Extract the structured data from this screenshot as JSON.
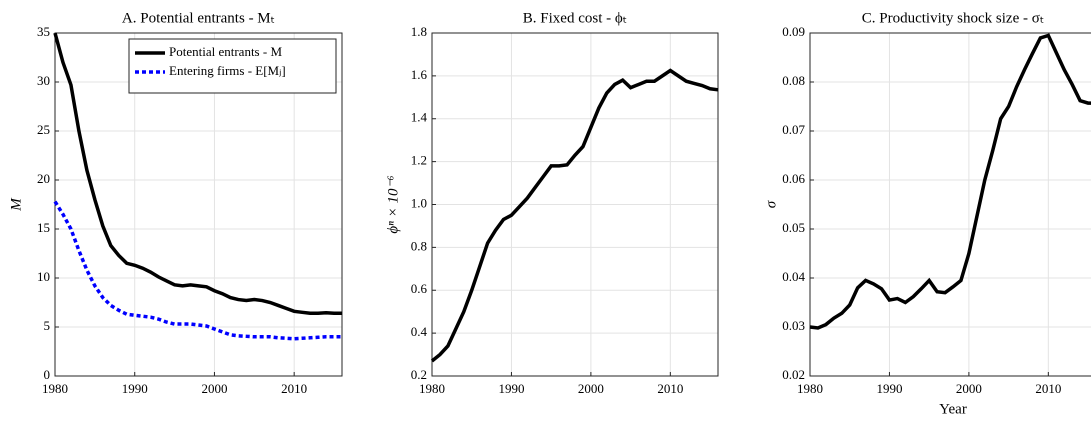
{
  "chart_data": [
    {
      "type": "line",
      "title": "A. Potential entrants - Mₜ",
      "ylabel": "M",
      "x": [
        1980,
        1981,
        1982,
        1983,
        1984,
        1985,
        1986,
        1987,
        1988,
        1989,
        1990,
        1991,
        1992,
        1993,
        1994,
        1995,
        1996,
        1997,
        1998,
        1999,
        2000,
        2001,
        2002,
        2003,
        2004,
        2005,
        2006,
        2007,
        2008,
        2009,
        2010,
        2011,
        2012,
        2013,
        2014,
        2015,
        2016
      ],
      "series": [
        {
          "name": "Potential entrants - M",
          "color": "#000000",
          "style": "solid",
          "values": [
            35,
            32,
            29.7,
            25,
            21,
            18,
            15.3,
            13.3,
            12.3,
            11.5,
            11.3,
            11,
            10.6,
            10.1,
            9.7,
            9.3,
            9.2,
            9.3,
            9.2,
            9.1,
            8.7,
            8.4,
            8,
            7.8,
            7.7,
            7.8,
            7.7,
            7.5,
            7.2,
            6.9,
            6.6,
            6.5,
            6.4,
            6.4,
            6.45,
            6.4,
            6.4
          ]
        },
        {
          "name": "Entering firms - E[Mⱼ]",
          "color": "#0000ff",
          "style": "dotted",
          "values": [
            17.8,
            16.5,
            15,
            12.8,
            10.8,
            9.2,
            8,
            7.2,
            6.7,
            6.3,
            6.2,
            6.1,
            6,
            5.8,
            5.5,
            5.3,
            5.3,
            5.3,
            5.2,
            5.1,
            4.8,
            4.5,
            4.2,
            4.1,
            4.05,
            4,
            4,
            4,
            3.9,
            3.85,
            3.8,
            3.85,
            3.9,
            3.95,
            4,
            4,
            4
          ]
        }
      ],
      "xlim": [
        1980,
        2016
      ],
      "xticks": [
        1980,
        1990,
        2000,
        2010
      ],
      "ylim": [
        0,
        35
      ],
      "yticks": [
        0,
        5,
        10,
        15,
        20,
        25,
        30,
        35
      ],
      "grid": true,
      "legend": "upper right"
    },
    {
      "type": "line",
      "title": "B. Fixed cost - ϕₜ",
      "ylabel": "ϕⁿ × 10⁻⁶",
      "x": [
        1980,
        1981,
        1982,
        1983,
        1984,
        1985,
        1986,
        1987,
        1988,
        1989,
        1990,
        1991,
        1992,
        1993,
        1994,
        1995,
        1996,
        1997,
        1998,
        1999,
        2000,
        2001,
        2002,
        2003,
        2004,
        2005,
        2006,
        2007,
        2008,
        2009,
        2010,
        2011,
        2012,
        2013,
        2014,
        2015,
        2016
      ],
      "series": [
        {
          "color": "#000000",
          "style": "solid",
          "values": [
            0.27,
            0.3,
            0.34,
            0.42,
            0.5,
            0.6,
            0.71,
            0.82,
            0.88,
            0.93,
            0.95,
            0.99,
            1.03,
            1.08,
            1.13,
            1.18,
            1.18,
            1.185,
            1.23,
            1.27,
            1.36,
            1.45,
            1.52,
            1.56,
            1.58,
            1.545,
            1.56,
            1.575,
            1.575,
            1.6,
            1.625,
            1.6,
            1.575,
            1.565,
            1.555,
            1.54,
            1.535
          ]
        }
      ],
      "xlim": [
        1980,
        2016
      ],
      "xticks": [
        1980,
        1990,
        2000,
        2010
      ],
      "ylim": [
        0.2,
        1.8
      ],
      "yticks": [
        0.2,
        0.4,
        0.6,
        0.8,
        {
          "value": 1,
          "label": "1.0"
        },
        1.2,
        1.4,
        1.6,
        1.8
      ],
      "grid": true
    },
    {
      "type": "line",
      "title": "C. Productivity shock size - σₜ",
      "ylabel": "σ",
      "xlabel": "Year",
      "x": [
        1980,
        1981,
        1982,
        1983,
        1984,
        1985,
        1986,
        1987,
        1988,
        1989,
        1990,
        1991,
        1992,
        1993,
        1994,
        1995,
        1996,
        1997,
        1998,
        1999,
        2000,
        2001,
        2002,
        2003,
        2004,
        2005,
        2006,
        2007,
        2008,
        2009,
        2010,
        2011,
        2012,
        2013,
        2014,
        2015,
        2016
      ],
      "series": [
        {
          "color": "#000000",
          "style": "solid",
          "values": [
            0.03,
            0.0298,
            0.0305,
            0.0318,
            0.0328,
            0.0345,
            0.038,
            0.0395,
            0.0388,
            0.0378,
            0.0355,
            0.0358,
            0.035,
            0.0362,
            0.0378,
            0.0395,
            0.0372,
            0.037,
            0.0382,
            0.0395,
            0.045,
            0.0525,
            0.06,
            0.066,
            0.0725,
            0.075,
            0.079,
            0.0825,
            0.0858,
            0.089,
            0.0895,
            0.086,
            0.0825,
            0.0795,
            0.0762,
            0.0757,
            0.0757
          ]
        }
      ],
      "xlim": [
        1980,
        2016
      ],
      "xticks": [
        1980,
        1990,
        2000,
        2010
      ],
      "ylim": [
        0.02,
        0.09
      ],
      "yticks": [
        0.02,
        0.03,
        0.04,
        0.05,
        0.06,
        0.07,
        0.08,
        0.09
      ],
      "grid": true
    }
  ]
}
